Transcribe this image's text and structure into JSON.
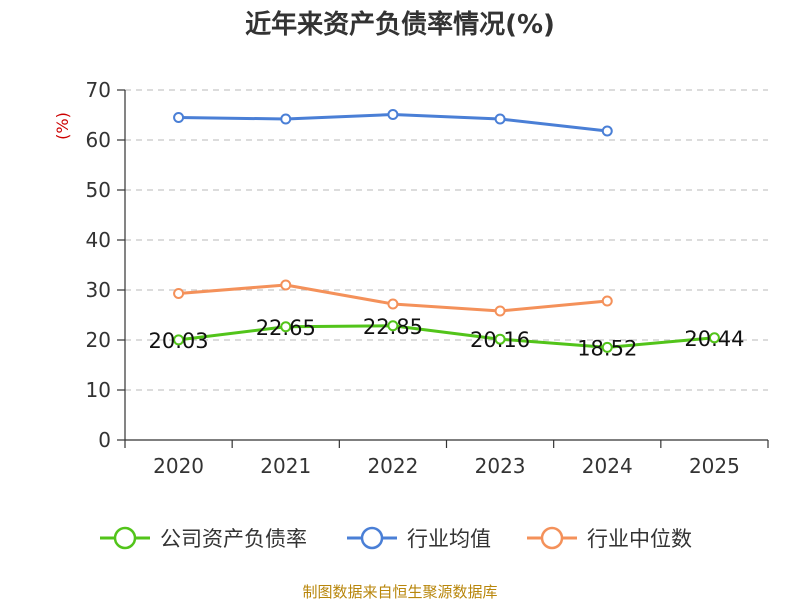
{
  "chart_data": {
    "type": "line",
    "title": "近年来资产负债率情况(%)",
    "ylabel": "(%)",
    "xlabel": "",
    "categories": [
      "2020",
      "2021",
      "2022",
      "2023",
      "2024",
      "2025"
    ],
    "ylim": [
      0,
      70
    ],
    "yticks": [
      0,
      10,
      20,
      30,
      40,
      50,
      60,
      70
    ],
    "grid": true,
    "legend_position": "bottom",
    "series": [
      {
        "name": "公司资产负债率",
        "color": "#52c41a",
        "values": [
          20.03,
          22.65,
          22.85,
          20.16,
          18.52,
          20.44
        ],
        "labels": [
          "20.03",
          "22.65",
          "22.85",
          "20.16",
          "18.52",
          "20.44"
        ]
      },
      {
        "name": "行业均值",
        "color": "#4a7fd6",
        "values": [
          64.5,
          64.2,
          65.1,
          64.2,
          61.8,
          null
        ]
      },
      {
        "name": "行业中位数",
        "color": "#f4915a",
        "values": [
          29.3,
          31.0,
          27.2,
          25.8,
          27.8,
          null
        ]
      }
    ]
  },
  "source": "制图数据来自恒生聚源数据库"
}
